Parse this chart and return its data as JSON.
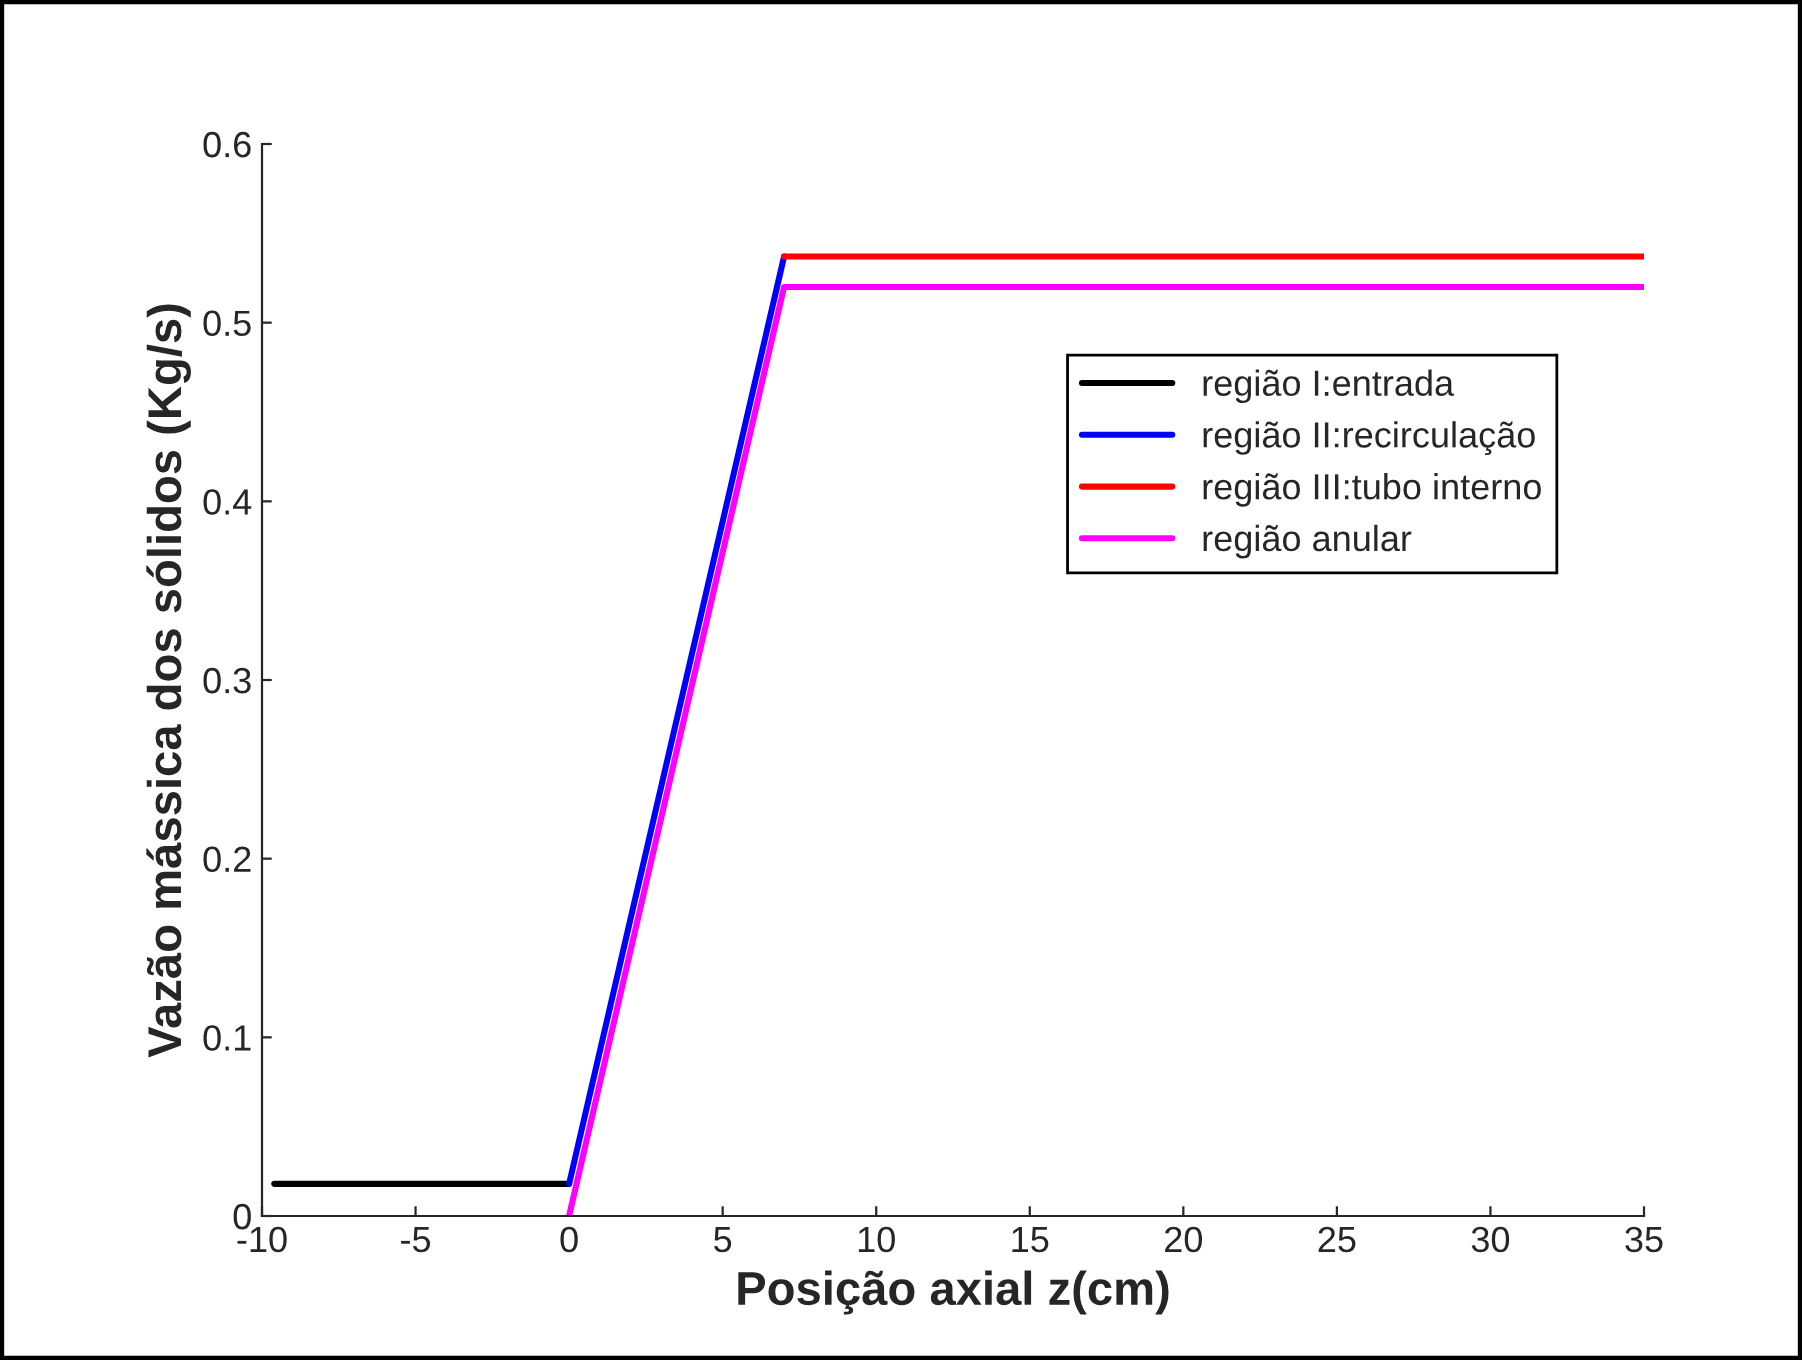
{
  "chart_data": {
    "type": "line",
    "xlabel": "Posição axial z(cm)",
    "ylabel": "Vazão mássica dos sólidos (Kg/s)",
    "xlim": [
      -10,
      35
    ],
    "xticks": [
      -10,
      -5,
      0,
      5,
      10,
      15,
      20,
      25,
      30,
      35
    ],
    "ylim": [
      0,
      0.6
    ],
    "yticks": [
      0,
      0.1,
      0.2,
      0.3,
      0.4,
      0.5,
      0.6
    ],
    "grid": false,
    "legend": "top right",
    "marker": "none",
    "line_style": "solid",
    "series": [
      {
        "name": "região I:entrada",
        "color": "#000000",
        "x": [
          -9.6,
          0
        ],
        "values": [
          0.018,
          0.018
        ]
      },
      {
        "name": "região II:recirculação",
        "color": "#0000ff",
        "x": [
          0,
          7
        ],
        "values": [
          0.018,
          0.537
        ]
      },
      {
        "name": "região III:tubo interno",
        "color": "#ff0000",
        "x": [
          7,
          35
        ],
        "values": [
          0.537,
          0.537
        ]
      },
      {
        "name": "região anular",
        "color": "#ff00ff",
        "x": [
          0,
          7,
          35
        ],
        "values": [
          0,
          0.52,
          0.52
        ]
      }
    ]
  }
}
